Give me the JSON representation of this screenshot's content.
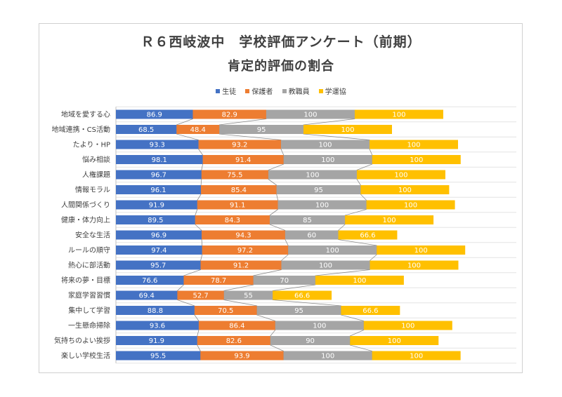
{
  "chart_data": {
    "type": "bar",
    "stacked": true,
    "orientation": "horizontal",
    "title": "Ｒ６西岐波中　学校評価アンケート（前期）",
    "subtitle": "肯定的評価の割合",
    "legend_position": "top",
    "grid": true,
    "categories": [
      "地域を愛する心",
      "地域連携・CS活動",
      "たより・HP",
      "悩み相談",
      "人権課題",
      "情報モラル",
      "人間関係づくり",
      "健康・体力向上",
      "安全な生活",
      "ルールの順守",
      "熱心に部活動",
      "将来の夢・目標",
      "家庭学習習慣",
      "集中して学習",
      "一生懸命掃除",
      "気持ちのよい挨拶",
      "楽しい学校生活"
    ],
    "series": [
      {
        "name": "生徒",
        "color": "#4472c4",
        "values": [
          86.9,
          68.5,
          93.3,
          98.1,
          96.7,
          96.1,
          91.9,
          89.5,
          96.9,
          97.4,
          95.7,
          76.6,
          69.4,
          88.8,
          93.6,
          91.9,
          95.5
        ]
      },
      {
        "name": "保護者",
        "color": "#ed7d31",
        "values": [
          82.9,
          48.4,
          93.2,
          91.4,
          75.5,
          85.4,
          91.1,
          84.3,
          94.3,
          97.2,
          91.2,
          78.7,
          52.7,
          70.5,
          86.4,
          82.6,
          93.9
        ]
      },
      {
        "name": "教職員",
        "color": "#a5a5a5",
        "values": [
          100,
          95,
          100,
          100,
          100,
          95,
          100,
          85,
          60,
          100,
          100,
          70,
          55,
          95,
          100,
          90,
          100
        ]
      },
      {
        "name": "学運協",
        "color": "#ffc000",
        "values": [
          100,
          100,
          100,
          100,
          100,
          100,
          100,
          100,
          66.6,
          100,
          100,
          100,
          66.6,
          66.6,
          100,
          100,
          100
        ]
      }
    ]
  }
}
